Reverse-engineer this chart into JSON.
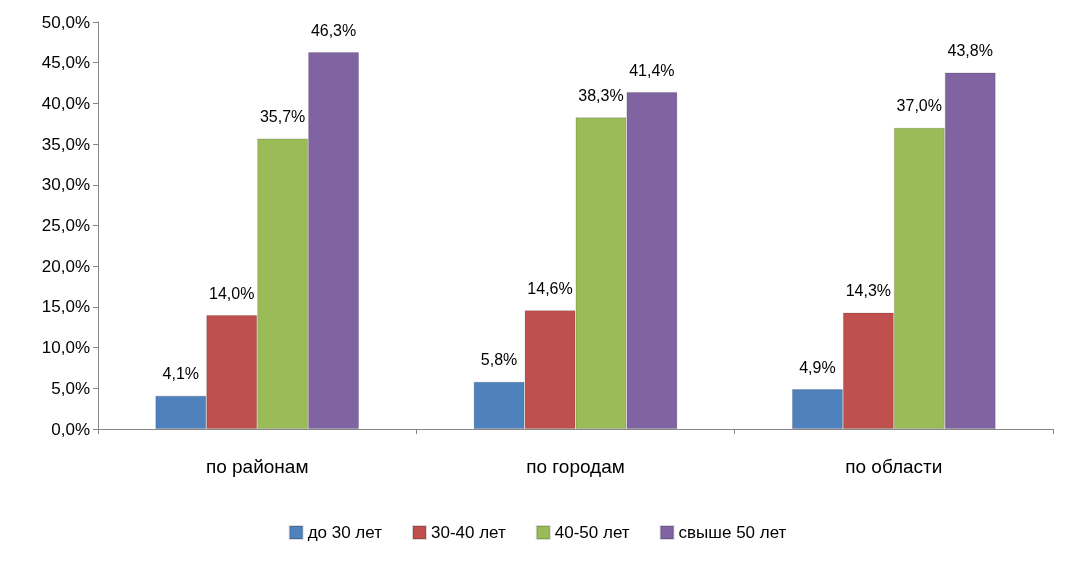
{
  "chart_data": {
    "type": "bar",
    "categories": [
      "по районам",
      "по городам",
      "по области"
    ],
    "series": [
      {
        "name": "до 30 лет",
        "color": "#4f81bd",
        "values": [
          4.1,
          5.8,
          4.9
        ],
        "value_labels": [
          "4,1%",
          "5,8%",
          "4,9%"
        ]
      },
      {
        "name": "30-40 лет",
        "color": "#c0504d",
        "values": [
          14.0,
          14.6,
          14.3
        ],
        "value_labels": [
          "14,0%",
          "14,6%",
          "14,3%"
        ]
      },
      {
        "name": "40-50 лет",
        "color": "#9bbb59",
        "values": [
          35.7,
          38.3,
          37.0
        ],
        "value_labels": [
          "35,7%",
          "38,3%",
          "37,0%"
        ]
      },
      {
        "name": "свыше 50 лет",
        "color": "#8064a2",
        "values": [
          46.3,
          41.4,
          43.8
        ],
        "value_labels": [
          "46,3%",
          "41,4%",
          "43,8%"
        ]
      }
    ],
    "ylim": [
      0,
      50
    ],
    "yticks": [
      {
        "value": 0,
        "label": "0,0%"
      },
      {
        "value": 5,
        "label": "5,0%"
      },
      {
        "value": 10,
        "label": "10,0%"
      },
      {
        "value": 15,
        "label": "15,0%"
      },
      {
        "value": 20,
        "label": "20,0%"
      },
      {
        "value": 25,
        "label": "25,0%"
      },
      {
        "value": 30,
        "label": "30,0%"
      },
      {
        "value": 35,
        "label": "35,0%"
      },
      {
        "value": 40,
        "label": "40,0%"
      },
      {
        "value": 45,
        "label": "45,0%"
      },
      {
        "value": 50,
        "label": "50,0%"
      }
    ],
    "grid": false,
    "legend": "bottom"
  }
}
